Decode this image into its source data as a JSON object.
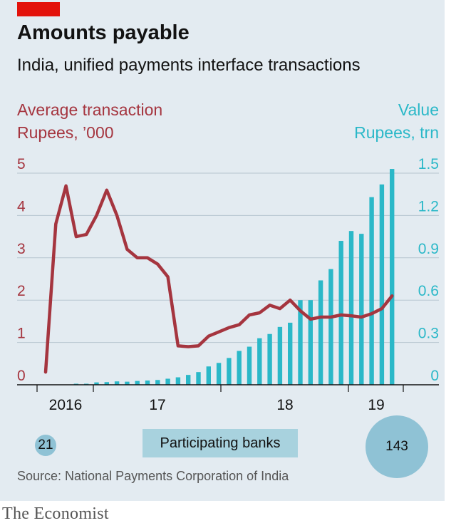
{
  "header": {
    "title": "Amounts payable",
    "subtitle": "India, unified payments interface transactions"
  },
  "left_axis": {
    "title": "Average transaction",
    "unit": "Rupees, ’000",
    "ticks": [
      "0",
      "1",
      "2",
      "3",
      "4",
      "5"
    ],
    "color": "#a5353f"
  },
  "right_axis": {
    "title": "Value",
    "unit": "Rupees, trn",
    "ticks": [
      "0",
      "0.3",
      "0.6",
      "0.9",
      "1.2",
      "1.5"
    ],
    "color": "#2bb8c8"
  },
  "x_labels": [
    "2016",
    "17",
    "18",
    "19"
  ],
  "banks": {
    "label": "Participating banks",
    "start": "21",
    "end": "143"
  },
  "source": "Source: National Payments Corporation of India",
  "brand": "The Economist",
  "chart_data": {
    "type": "bar",
    "months": [
      "2016-08",
      "2016-09",
      "2016-10",
      "2016-11",
      "2016-12",
      "2017-01",
      "2017-02",
      "2017-03",
      "2017-04",
      "2017-05",
      "2017-06",
      "2017-07",
      "2017-08",
      "2017-09",
      "2017-10",
      "2017-11",
      "2017-12",
      "2018-01",
      "2018-02",
      "2018-03",
      "2018-04",
      "2018-05",
      "2018-06",
      "2018-07",
      "2018-08",
      "2018-09",
      "2018-10",
      "2018-11",
      "2018-12",
      "2019-01",
      "2019-02",
      "2019-03",
      "2019-04",
      "2019-05",
      "2019-06"
    ],
    "series": [
      {
        "name": "Value",
        "axis": "right",
        "unit": "Rupees, trn",
        "type": "bar",
        "values": [
          0.0,
          0.0,
          0.0,
          0.004,
          0.007,
          0.017,
          0.019,
          0.024,
          0.022,
          0.027,
          0.03,
          0.034,
          0.043,
          0.053,
          0.07,
          0.09,
          0.13,
          0.155,
          0.19,
          0.24,
          0.27,
          0.33,
          0.36,
          0.41,
          0.44,
          0.6,
          0.6,
          0.74,
          0.82,
          1.02,
          1.09,
          1.07,
          1.33,
          1.42,
          1.53
        ]
      },
      {
        "name": "Average transaction",
        "axis": "left",
        "unit": "Rupees, ’000",
        "type": "line",
        "values": [
          0.3,
          3.8,
          4.7,
          3.5,
          3.55,
          4.0,
          4.6,
          4.0,
          3.2,
          3.0,
          3.0,
          2.85,
          2.55,
          0.92,
          0.9,
          0.92,
          1.15,
          1.25,
          1.35,
          1.42,
          1.65,
          1.7,
          1.88,
          1.8,
          2.0,
          1.75,
          1.55,
          1.6,
          1.6,
          1.65,
          1.63,
          1.6,
          1.68,
          1.8,
          2.1
        ]
      }
    ],
    "left_ylim": [
      0,
      5
    ],
    "right_ylim": [
      0,
      1.5
    ],
    "x_ticks": [
      "2016",
      "17",
      "18",
      "19"
    ],
    "grid": true,
    "legend": "axis titles"
  }
}
